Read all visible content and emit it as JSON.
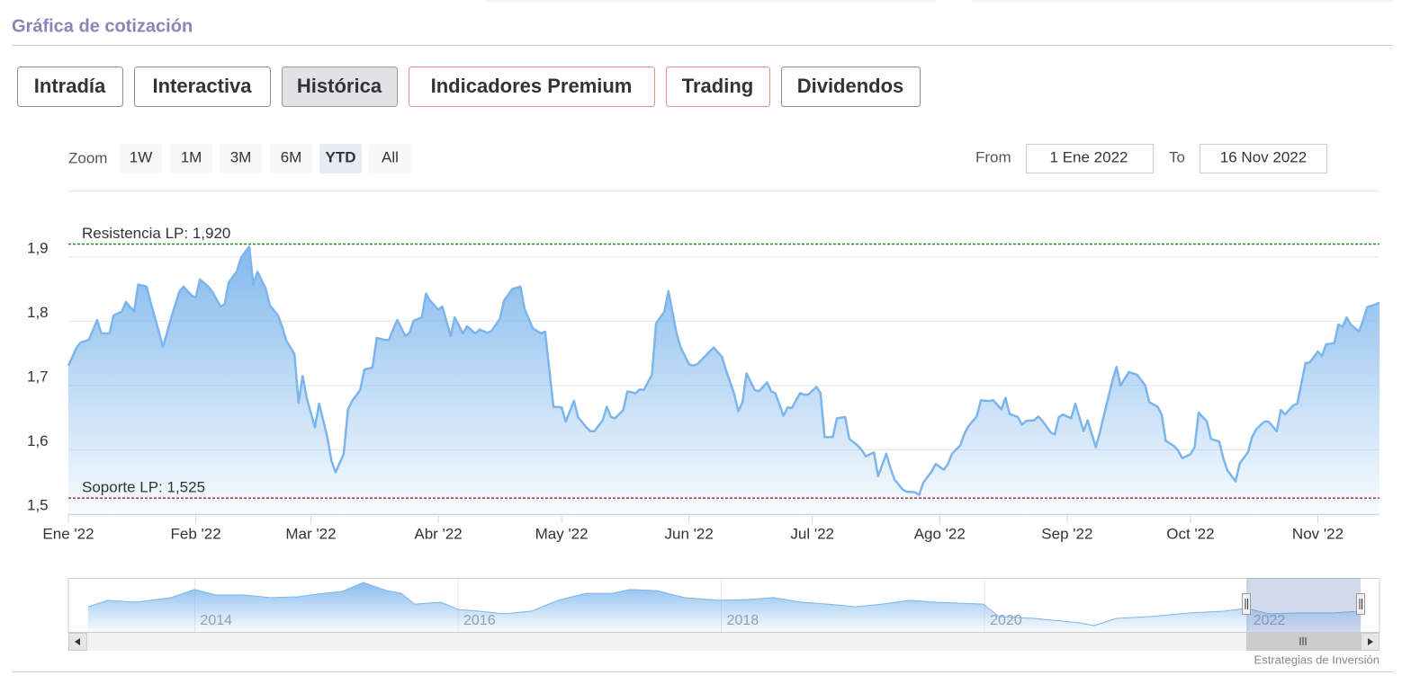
{
  "header": {
    "title": "Gráfica de cotización"
  },
  "tabs": [
    {
      "label": "Intradía",
      "color": "#8d86b8"
    },
    {
      "label": "Interactiva",
      "color": "#8d86b8"
    },
    {
      "label": "Histórica",
      "color": "#8d86b8"
    },
    {
      "label": "Indicadores Premium",
      "color": "#e0918a"
    },
    {
      "label": "Trading",
      "color": "#e0918a"
    },
    {
      "label": "Dividendos",
      "color": "#8d86b8"
    }
  ],
  "selected_tab": 2,
  "zoom": {
    "label": "Zoom",
    "buttons": [
      "1W",
      "1M",
      "3M",
      "6M",
      "YTD",
      "All"
    ],
    "selected": 4
  },
  "range": {
    "from_label": "From",
    "from": "1 Ene 2022",
    "to_label": "To",
    "to": "16 Nov 2022"
  },
  "chart_data": {
    "type": "area",
    "color": "#7cb5ec",
    "x": [
      1,
      3,
      4,
      6,
      8,
      9,
      11,
      12,
      14,
      15,
      17,
      18,
      20,
      21,
      23,
      24,
      26,
      28,
      29,
      31,
      32,
      33,
      35,
      36,
      38,
      39,
      40,
      42,
      43,
      45,
      46,
      47,
      49,
      50,
      52,
      53,
      54,
      56,
      57,
      58,
      59,
      61,
      62,
      64,
      65,
      66,
      68,
      69,
      70,
      72,
      73,
      75,
      76,
      78,
      79,
      80,
      81,
      83,
      84,
      85,
      87,
      88,
      89,
      91,
      92,
      94,
      95,
      97,
      98,
      100,
      101,
      103,
      104,
      106,
      107,
      109,
      111,
      112,
      114,
      116,
      117,
      119,
      121,
      122,
      124,
      125,
      127,
      128,
      129,
      131,
      132,
      133,
      134,
      136,
      137,
      139,
      140,
      141,
      143,
      144,
      146,
      147,
      149,
      150,
      152,
      153,
      154,
      156,
      157,
      158,
      160,
      161,
      163,
      164,
      165,
      166,
      168,
      169,
      171,
      172,
      173,
      175,
      176,
      177,
      179,
      180,
      181,
      183,
      184,
      185,
      187,
      188,
      190,
      191,
      193,
      194,
      195,
      197,
      198,
      200,
      201,
      202,
      204,
      205,
      207,
      208,
      209,
      211,
      212,
      214,
      215,
      216,
      218,
      219,
      220,
      222,
      223,
      225,
      226,
      228,
      229,
      230,
      232,
      233,
      234,
      236,
      237,
      238,
      240,
      241,
      242,
      243,
      245,
      246,
      248,
      249,
      251,
      252,
      253,
      255,
      256,
      257,
      259,
      260,
      261,
      263,
      264,
      266,
      267,
      268,
      270,
      271,
      272,
      274,
      275,
      276,
      278,
      279,
      281,
      282,
      283,
      285,
      286,
      288,
      289,
      290,
      292,
      293,
      295,
      296,
      297,
      299,
      300,
      302,
      303,
      305,
      306,
      307,
      309,
      310,
      311,
      312,
      313,
      315,
      316,
      317,
      319,
      320
    ],
    "values": [
      1.731,
      1.759,
      1.767,
      1.771,
      1.802,
      1.781,
      1.781,
      1.809,
      1.815,
      1.83,
      1.815,
      1.857,
      1.854,
      1.83,
      1.784,
      1.76,
      1.805,
      1.846,
      1.854,
      1.84,
      1.837,
      1.865,
      1.854,
      1.846,
      1.823,
      1.826,
      1.86,
      1.878,
      1.899,
      1.916,
      1.857,
      1.877,
      1.851,
      1.825,
      1.809,
      1.792,
      1.77,
      1.749,
      1.673,
      1.715,
      1.68,
      1.635,
      1.672,
      1.62,
      1.583,
      1.565,
      1.594,
      1.662,
      1.676,
      1.693,
      1.725,
      1.728,
      1.774,
      1.771,
      1.771,
      1.787,
      1.802,
      1.777,
      1.782,
      1.801,
      1.806,
      1.843,
      1.832,
      1.818,
      1.823,
      1.777,
      1.806,
      1.781,
      1.792,
      1.781,
      1.787,
      1.782,
      1.785,
      1.804,
      1.832,
      1.85,
      1.854,
      1.819,
      1.789,
      1.781,
      1.784,
      1.667,
      1.666,
      1.644,
      1.676,
      1.651,
      1.635,
      1.629,
      1.629,
      1.646,
      1.667,
      1.651,
      1.649,
      1.662,
      1.691,
      1.688,
      1.694,
      1.693,
      1.717,
      1.797,
      1.815,
      1.847,
      1.78,
      1.759,
      1.733,
      1.731,
      1.733,
      1.746,
      1.753,
      1.759,
      1.745,
      1.724,
      1.687,
      1.66,
      1.674,
      1.719,
      1.693,
      1.691,
      1.705,
      1.691,
      1.688,
      1.653,
      1.666,
      1.665,
      1.688,
      1.686,
      1.686,
      1.698,
      1.688,
      1.62,
      1.62,
      1.649,
      1.651,
      1.617,
      1.607,
      1.6,
      1.59,
      1.596,
      1.559,
      1.594,
      1.572,
      1.554,
      1.538,
      1.535,
      1.534,
      1.53,
      1.549,
      1.566,
      1.578,
      1.569,
      1.578,
      1.594,
      1.607,
      1.625,
      1.637,
      1.652,
      1.677,
      1.676,
      1.677,
      1.663,
      1.681,
      1.656,
      1.651,
      1.639,
      1.645,
      1.646,
      1.652,
      1.645,
      1.627,
      1.624,
      1.651,
      1.655,
      1.649,
      1.672,
      1.629,
      1.646,
      1.604,
      1.628,
      1.655,
      1.707,
      1.729,
      1.7,
      1.721,
      1.719,
      1.717,
      1.7,
      1.674,
      1.667,
      1.655,
      1.614,
      1.606,
      1.599,
      1.587,
      1.593,
      1.604,
      1.658,
      1.644,
      1.617,
      1.613,
      1.587,
      1.568,
      1.551,
      1.579,
      1.596,
      1.62,
      1.632,
      1.644,
      1.644,
      1.629,
      1.662,
      1.655,
      1.669,
      1.672,
      1.735,
      1.736,
      1.753,
      1.746,
      1.764,
      1.766,
      1.795,
      1.791,
      1.806,
      1.795,
      1.784,
      1.801,
      1.822,
      1.826,
      1.829
    ],
    "xlim": [
      1,
      320
    ],
    "xticks": [
      {
        "value": 1,
        "label": "Ene '22"
      },
      {
        "value": 32,
        "label": "Feb '22"
      },
      {
        "value": 60,
        "label": "Mar '22"
      },
      {
        "value": 91,
        "label": "Abr '22"
      },
      {
        "value": 121,
        "label": "May '22"
      },
      {
        "value": 152,
        "label": "Jun '22"
      },
      {
        "value": 182,
        "label": "Jul '22"
      },
      {
        "value": 213,
        "label": "Ago '22"
      },
      {
        "value": 244,
        "label": "Sep '22"
      },
      {
        "value": 274,
        "label": "Oct '22"
      },
      {
        "value": 305,
        "label": "Nov '22"
      }
    ],
    "ylim": [
      1.5,
      1.925
    ],
    "yticks": [
      {
        "value": 1.5,
        "label": "1,5"
      },
      {
        "value": 1.6,
        "label": "1,6"
      },
      {
        "value": 1.7,
        "label": "1,7"
      },
      {
        "value": 1.8,
        "label": "1,8"
      },
      {
        "value": 1.9,
        "label": "1,9"
      }
    ],
    "grid": true,
    "plot_lines": [
      {
        "label": "Resistencia LP: 1,920",
        "value": 1.92,
        "color": "#1b7a1b"
      },
      {
        "label": "Soporte LP: 1,525",
        "value": 1.525,
        "color": "#8b1a1a"
      }
    ]
  },
  "navigator": {
    "type": "area",
    "color": "#7cb5ec",
    "x": [
      2013.19,
      2013.34,
      2013.55,
      2013.82,
      2014.0,
      2014.16,
      2014.37,
      2014.57,
      2014.78,
      2014.98,
      2015.12,
      2015.28,
      2015.46,
      2015.57,
      2015.67,
      2015.87,
      2016.0,
      2016.15,
      2016.35,
      2016.56,
      2016.76,
      2016.97,
      2017.17,
      2017.31,
      2017.51,
      2017.72,
      2017.99,
      2018.2,
      2018.4,
      2018.61,
      2018.81,
      2019.02,
      2019.22,
      2019.43,
      2019.63,
      2019.99,
      2020.11,
      2020.38,
      2020.73,
      2020.83,
      2021.0,
      2021.27,
      2021.55,
      2021.82,
      2021.99,
      2022.16,
      2022.37,
      2022.64,
      2022.86
    ],
    "values": [
      1.93,
      2.17,
      2.1,
      2.27,
      2.57,
      2.37,
      2.37,
      2.27,
      2.3,
      2.43,
      2.5,
      2.83,
      2.53,
      2.43,
      2.03,
      2.1,
      1.83,
      1.77,
      1.67,
      1.77,
      2.17,
      2.43,
      2.43,
      2.57,
      2.53,
      2.27,
      2.17,
      2.2,
      2.27,
      2.1,
      2.03,
      1.93,
      2.03,
      2.17,
      2.1,
      2.03,
      1.57,
      1.5,
      1.33,
      1.23,
      1.5,
      1.57,
      1.7,
      1.77,
      1.87,
      1.67,
      1.7,
      1.7,
      1.77
    ],
    "xlim": [
      2013.04,
      2023
    ],
    "xticks": [
      2014,
      2016,
      2018,
      2020,
      2022
    ],
    "ylim": [
      1,
      3
    ]
  },
  "footer": {
    "credit": "Estrategias de Inversión"
  }
}
